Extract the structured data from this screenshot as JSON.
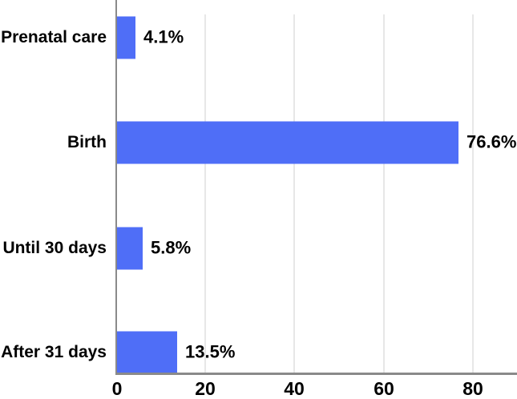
{
  "chart_data": {
    "type": "bar",
    "orientation": "horizontal",
    "title": "",
    "xlabel": "",
    "ylabel": "",
    "categories": [
      "Prenatal care",
      "Birth",
      "Until 30 days",
      "After 31 days"
    ],
    "values": [
      4.1,
      76.6,
      5.8,
      13.5
    ],
    "value_labels": [
      "4.1%",
      "76.6%",
      "5.8%",
      "13.5%"
    ],
    "x_tick_labels": [
      "0",
      "20",
      "40",
      "60",
      "80"
    ],
    "x_ticks": [
      0,
      20,
      40,
      60,
      80
    ],
    "xlim": [
      0,
      90
    ],
    "grid": true,
    "legend": false,
    "unit": "%"
  },
  "colors": {
    "bar": "#4f6ef7",
    "axis": "#8a8a8a",
    "gridline": "#e7e7e7",
    "text": "#000000",
    "background": "#ffffff"
  }
}
